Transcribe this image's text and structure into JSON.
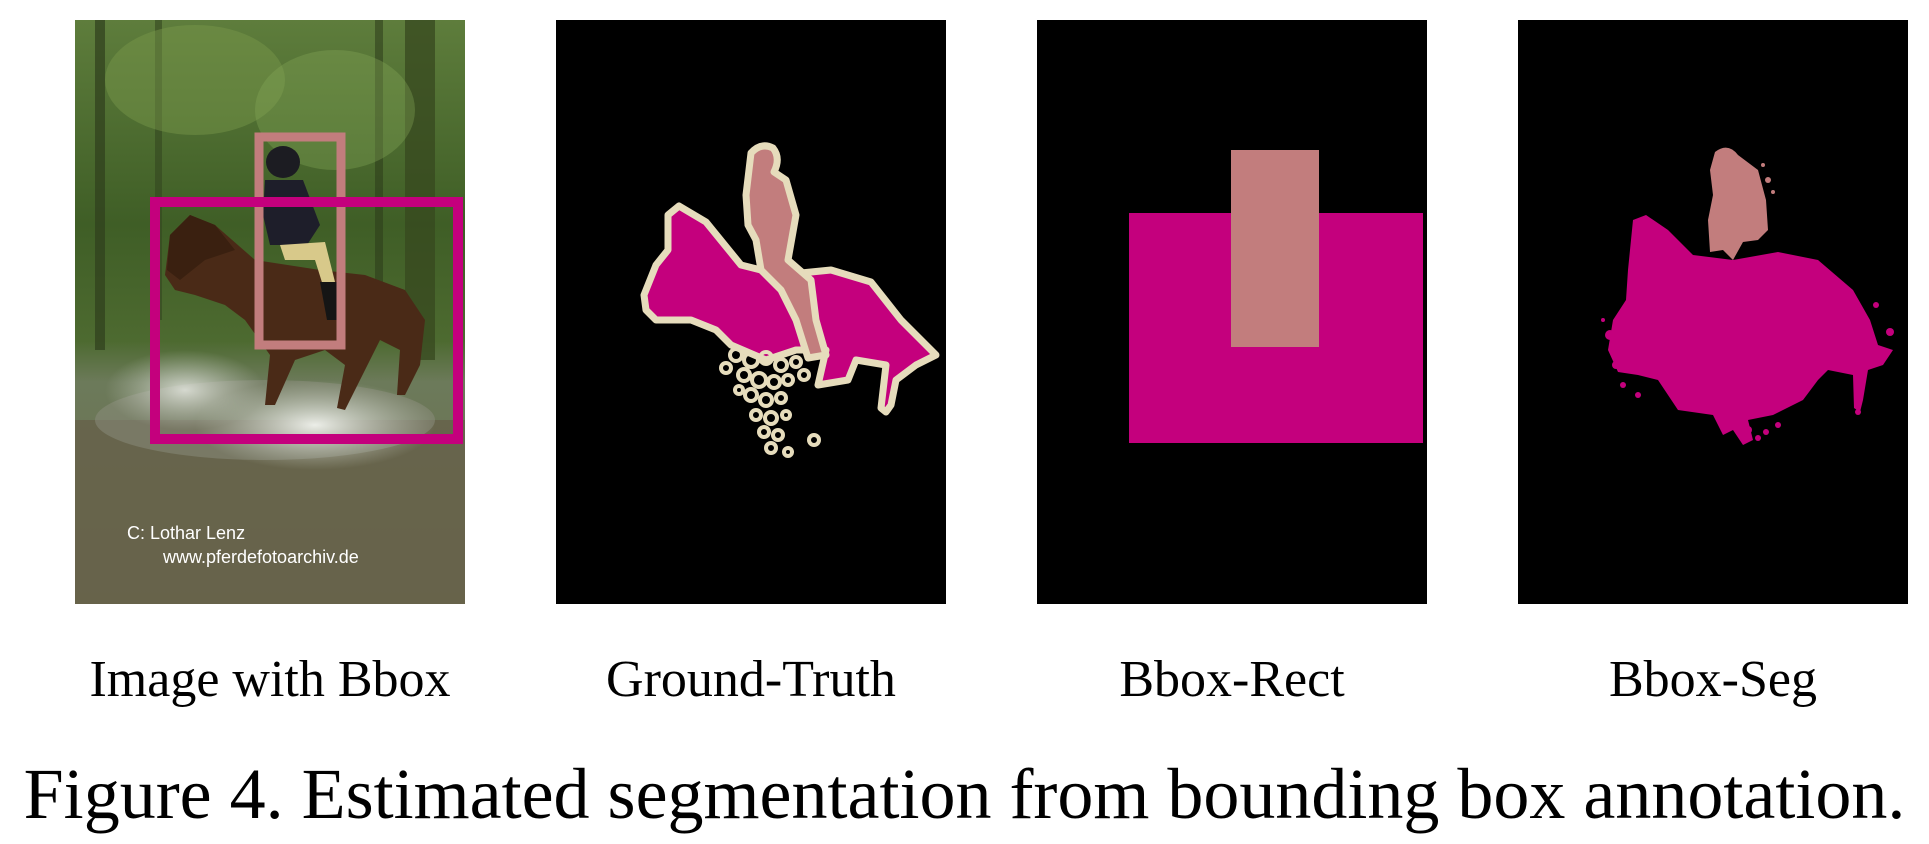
{
  "figure": {
    "caption": "Figure 4. Estimated segmentation from bounding box annotation.",
    "panels": [
      {
        "id": "image-with-bbox",
        "label": "Image with Bbox"
      },
      {
        "id": "ground-truth",
        "label": "Ground-Truth"
      },
      {
        "id": "bbox-rect",
        "label": "Bbox-Rect"
      },
      {
        "id": "bbox-seg",
        "label": "Bbox-Seg"
      }
    ],
    "photo_watermark": {
      "line1": "C:  Lothar Lenz",
      "line2": "www.pferdefotoarchiv.de"
    },
    "colors": {
      "horse_class": "#c4007d",
      "person_class": "#c27d7d",
      "boundary": "#e6dcbc",
      "background": "#000000"
    }
  }
}
